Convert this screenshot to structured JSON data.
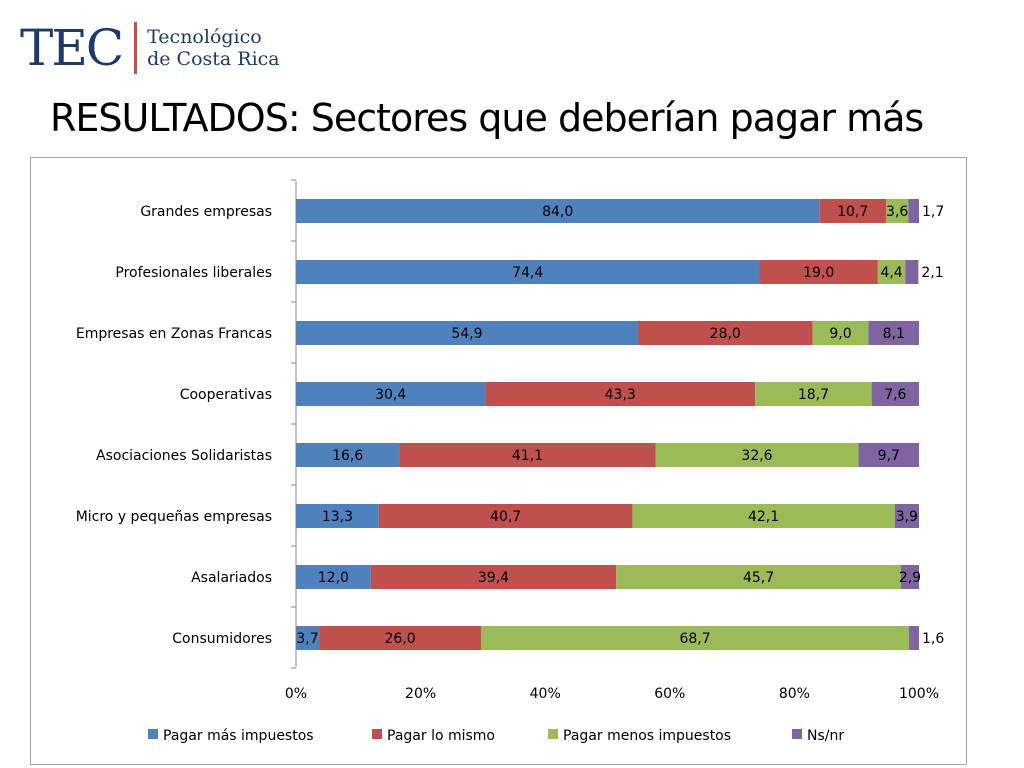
{
  "logo": {
    "mark": "TEC",
    "line1": "Tecnológico",
    "line2": "de Costa Rica"
  },
  "title": "RESULTADOS: Sectores que deberían pagar más",
  "chart_data": {
    "type": "bar",
    "orientation": "horizontal",
    "stacked": "percent",
    "categories": [
      "Grandes empresas",
      "Profesionales liberales",
      "Empresas en Zonas Francas",
      "Cooperativas",
      "Asociaciones Solidaristas",
      "Micro y pequeñas empresas",
      "Asalariados",
      "Consumidores"
    ],
    "series": [
      {
        "name": "Pagar más impuestos",
        "color": "#4f81bd",
        "values": [
          84.0,
          74.4,
          54.9,
          30.4,
          16.6,
          13.3,
          12.0,
          3.7
        ],
        "labels": [
          "84,0",
          "74,4",
          "54,9",
          "30,4",
          "16,6",
          "13,3",
          "12,0",
          "3,7"
        ]
      },
      {
        "name": "Pagar lo mismo",
        "color": "#c0504d",
        "values": [
          10.7,
          19.0,
          28.0,
          43.3,
          41.1,
          40.7,
          39.4,
          26.0
        ],
        "labels": [
          "10,7",
          "19,0",
          "28,0",
          "43,3",
          "41,1",
          "40,7",
          "39,4",
          "26,0"
        ]
      },
      {
        "name": "Pagar menos impuestos",
        "color": "#9bbb59",
        "values": [
          3.6,
          4.4,
          9.0,
          18.7,
          32.6,
          42.1,
          45.7,
          68.7
        ],
        "labels": [
          "3,6",
          "4,4",
          "9,0",
          "18,7",
          "32,6",
          "42,1",
          "45,7",
          "68,7"
        ]
      },
      {
        "name": "Ns/nr",
        "color": "#8064a2",
        "values": [
          1.7,
          2.1,
          8.1,
          7.6,
          9.7,
          3.9,
          2.9,
          1.6
        ],
        "labels": [
          "1,7",
          "2,1",
          "8,1",
          "7,6",
          "9,7",
          "3,9",
          "2,9",
          "1,6"
        ]
      }
    ],
    "xticks": [
      "0%",
      "20%",
      "40%",
      "60%",
      "80%",
      "100%"
    ],
    "xlim": [
      0,
      100
    ],
    "legend": "bottom",
    "grid": false
  }
}
